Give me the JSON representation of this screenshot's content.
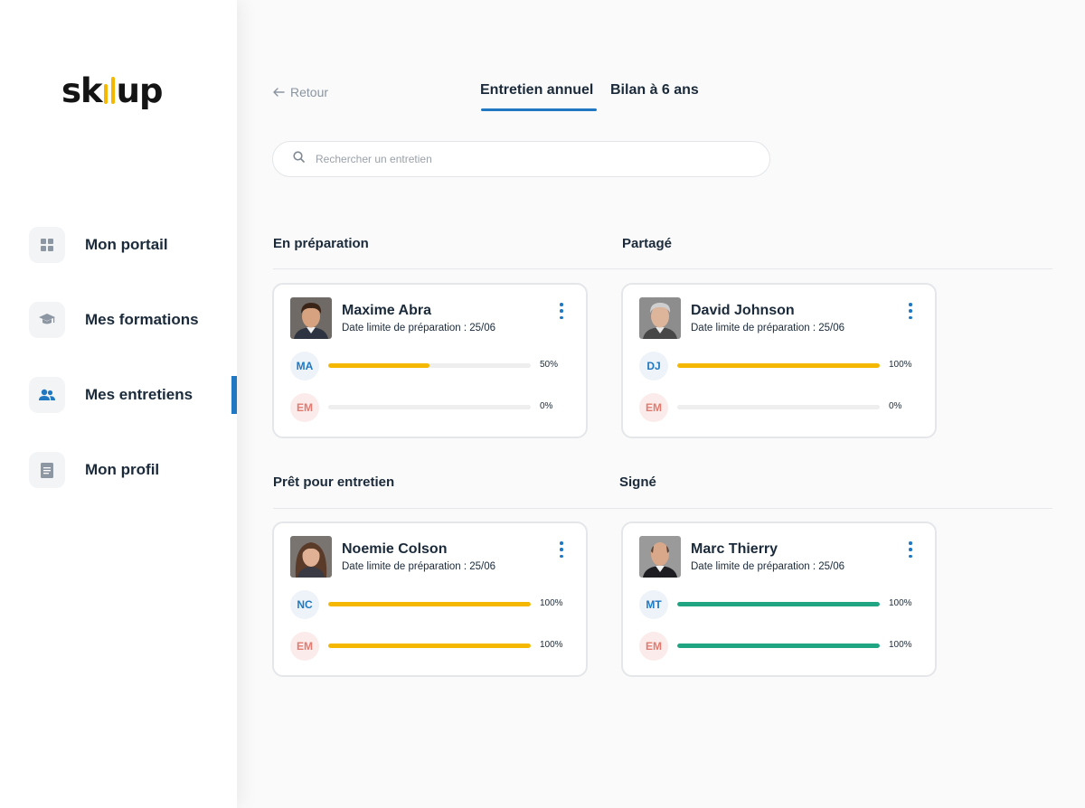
{
  "brand": {
    "logo_prefix": "sk",
    "logo_suffix": "up",
    "logo_full": "skillup",
    "accent": "#1f78c1",
    "yellow": "#f5b800",
    "green": "#1fa581"
  },
  "sidebar": {
    "items": [
      {
        "label": "Mon portail",
        "icon": "grid-icon",
        "active": false
      },
      {
        "label": "Mes formations",
        "icon": "graduation-cap-icon",
        "active": false
      },
      {
        "label": "Mes entretiens",
        "icon": "users-icon",
        "active": true
      },
      {
        "label": "Mon profil",
        "icon": "document-icon",
        "active": false
      }
    ]
  },
  "header": {
    "back_label": "Retour",
    "tabs": [
      {
        "label": "Entretien annuel",
        "active": true
      },
      {
        "label": "Bilan à 6 ans",
        "active": false
      }
    ]
  },
  "search": {
    "placeholder": "Rechercher un entretien",
    "value": ""
  },
  "sections": [
    {
      "title": "En préparation",
      "card": {
        "name": "Maxime Abra",
        "deadline": "Date limite de préparation : 25/06",
        "avatar": "man-dark-hair",
        "progress": [
          {
            "initials": "MA",
            "tone": "blue",
            "percent": 50,
            "label": "50%",
            "color": "#f5b800"
          },
          {
            "initials": "EM",
            "tone": "red",
            "percent": 0,
            "label": "0%",
            "color": "#f5b800"
          }
        ]
      }
    },
    {
      "title": "Partagé",
      "card": {
        "name": "David Johnson",
        "deadline": "Date limite de préparation : 25/06",
        "avatar": "man-grey-hair",
        "progress": [
          {
            "initials": "DJ",
            "tone": "blue",
            "percent": 100,
            "label": "100%",
            "color": "#f5b800"
          },
          {
            "initials": "EM",
            "tone": "red",
            "percent": 0,
            "label": "0%",
            "color": "#f5b800"
          }
        ]
      }
    },
    {
      "title": "Prêt pour entretien",
      "card": {
        "name": "Noemie Colson",
        "deadline": "Date limite de préparation : 25/06",
        "avatar": "woman-brown-hair",
        "progress": [
          {
            "initials": "NC",
            "tone": "blue",
            "percent": 100,
            "label": "100%",
            "color": "#f5b800"
          },
          {
            "initials": "EM",
            "tone": "red",
            "percent": 100,
            "label": "100%",
            "color": "#f5b800"
          }
        ]
      }
    },
    {
      "title": "Signé",
      "card": {
        "name": "Marc Thierry",
        "deadline": "Date limite de préparation : 25/06",
        "avatar": "man-bald",
        "progress": [
          {
            "initials": "MT",
            "tone": "blue",
            "percent": 100,
            "label": "100%",
            "color": "#1fa581"
          },
          {
            "initials": "EM",
            "tone": "red",
            "percent": 100,
            "label": "100%",
            "color": "#1fa581"
          }
        ]
      }
    }
  ]
}
